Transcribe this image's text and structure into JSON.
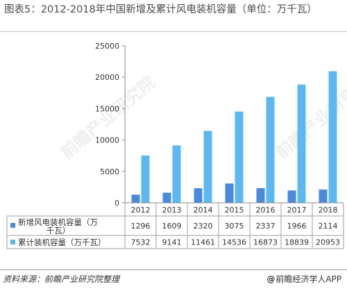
{
  "title": "图表5：2012-2018年中国新增及累计风电装机容量（单位：万千瓦）",
  "source": "资料来源：前瞻产业研究院整理",
  "credit": "前瞻经济学人APP",
  "watermark": "前瞻产业研究院",
  "colors": {
    "series1": "#4a89dc",
    "series2": "#5cb8f2",
    "grid": "#d9d9d9",
    "axis": "#8a8a8a"
  },
  "chart_data": {
    "type": "bar",
    "categories": [
      "2012",
      "2013",
      "2014",
      "2015",
      "2016",
      "2017",
      "2018"
    ],
    "series": [
      {
        "name": "新增风电装机容量（万千瓦）",
        "values": [
          1296,
          1609,
          2320,
          3075,
          2337,
          1966,
          2114
        ]
      },
      {
        "name": "累计装机容量（万千瓦）",
        "values": [
          7532,
          9141,
          11461,
          14536,
          16873,
          18839,
          20953
        ]
      }
    ],
    "ylim": [
      0,
      25000
    ],
    "yticks": [
      0,
      5000,
      10000,
      15000,
      20000,
      25000
    ],
    "grid": false,
    "legend": "data-table"
  }
}
